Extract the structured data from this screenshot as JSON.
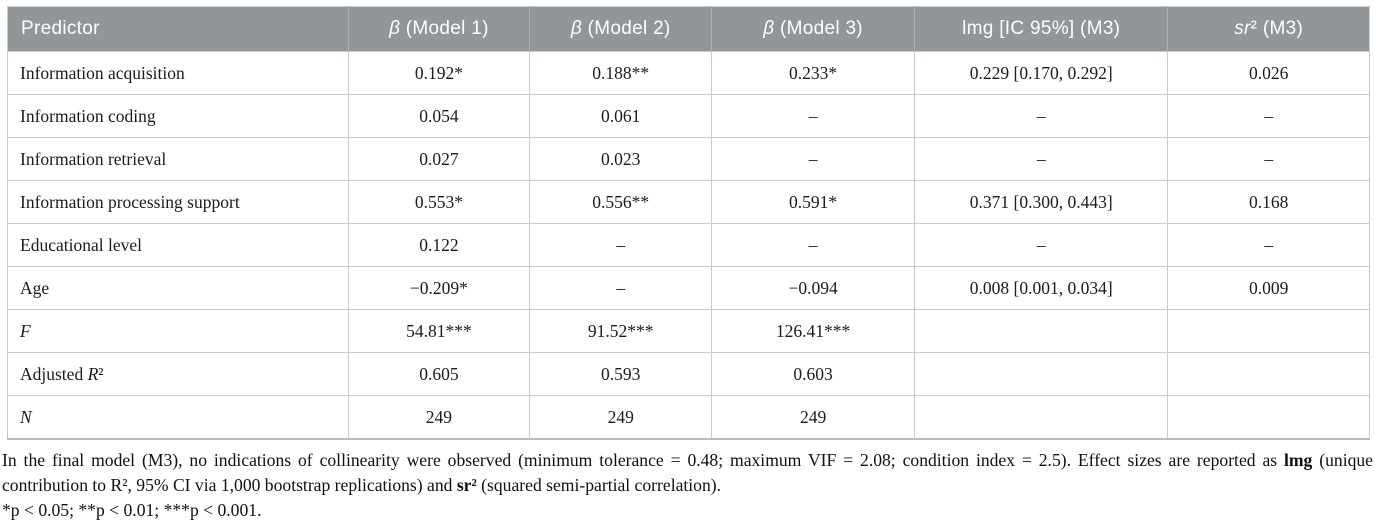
{
  "accent_colors": {
    "header_bg": "#919699",
    "header_text": "#ffffff",
    "grid_line": "#c9cacc",
    "body_text": "#1b1b1b"
  },
  "table": {
    "columns": [
      {
        "width": "25.0%",
        "align": "left",
        "segments": [
          {
            "t": "Predictor"
          }
        ]
      },
      {
        "width": "13.35%",
        "align": "center",
        "segments": [
          {
            "t": "β",
            "i": true
          },
          {
            "t": " (Model 1)"
          }
        ]
      },
      {
        "width": "13.35%",
        "align": "center",
        "segments": [
          {
            "t": "β",
            "i": true
          },
          {
            "t": " (Model 2)"
          }
        ]
      },
      {
        "width": "14.9%",
        "align": "center",
        "segments": [
          {
            "t": "β",
            "i": true
          },
          {
            "t": " (Model 3)"
          }
        ]
      },
      {
        "width": "18.6%",
        "align": "center",
        "segments": [
          {
            "t": "lmg [IC 95%] (M3)"
          }
        ]
      },
      {
        "width": "14.8%",
        "align": "center",
        "segments": [
          {
            "t": "sr",
            "i": true
          },
          {
            "t": "² (M3)"
          }
        ]
      }
    ],
    "rows": [
      {
        "label": [
          {
            "t": "Information acquisition"
          }
        ],
        "cells": [
          "0.192*",
          "0.188**",
          "0.233*",
          "0.229 [0.170, 0.292]",
          "0.026"
        ]
      },
      {
        "label": [
          {
            "t": "Information coding"
          }
        ],
        "cells": [
          "0.054",
          "0.061",
          "–",
          "–",
          "–"
        ]
      },
      {
        "label": [
          {
            "t": "Information retrieval"
          }
        ],
        "cells": [
          "0.027",
          "0.023",
          "–",
          "–",
          "–"
        ]
      },
      {
        "label": [
          {
            "t": "Information processing support"
          }
        ],
        "cells": [
          "0.553*",
          "0.556**",
          "0.591*",
          "0.371 [0.300, 0.443]",
          "0.168"
        ]
      },
      {
        "label": [
          {
            "t": "Educational level"
          }
        ],
        "cells": [
          "0.122",
          "–",
          "–",
          "–",
          "–"
        ]
      },
      {
        "label": [
          {
            "t": "Age"
          }
        ],
        "cells": [
          "−0.209*",
          "–",
          "−0.094",
          "0.008 [0.001, 0.034]",
          "0.009"
        ]
      },
      {
        "label": [
          {
            "t": "F",
            "i": true
          }
        ],
        "cells": [
          "54.81***",
          "91.52***",
          "126.41***",
          "",
          ""
        ]
      },
      {
        "label": [
          {
            "t": "Adjusted "
          },
          {
            "t": "R",
            "i": true
          },
          {
            "t": "²"
          }
        ],
        "cells": [
          "0.605",
          "0.593",
          "0.603",
          "",
          ""
        ]
      },
      {
        "label": [
          {
            "t": "N",
            "i": true
          }
        ],
        "cells": [
          "249",
          "249",
          "249",
          "",
          ""
        ]
      }
    ]
  },
  "footnote": {
    "main_segments": [
      {
        "t": "In the final model (M3), no indications of collinearity were observed (minimum tolerance = 0.48; maximum VIF = 2.08; condition index = 2.5). Effect sizes are reported as "
      },
      {
        "t": "lmg",
        "b": true
      },
      {
        "t": " (unique contribution to R², 95% CI via 1,000 bootstrap replications) and "
      },
      {
        "t": "sr²",
        "b": true
      },
      {
        "t": " (squared semi-partial correlation)."
      }
    ],
    "sig_segments": [
      {
        "t": "*p < 0.05; **p < 0.01; ***p < 0.001."
      }
    ]
  }
}
